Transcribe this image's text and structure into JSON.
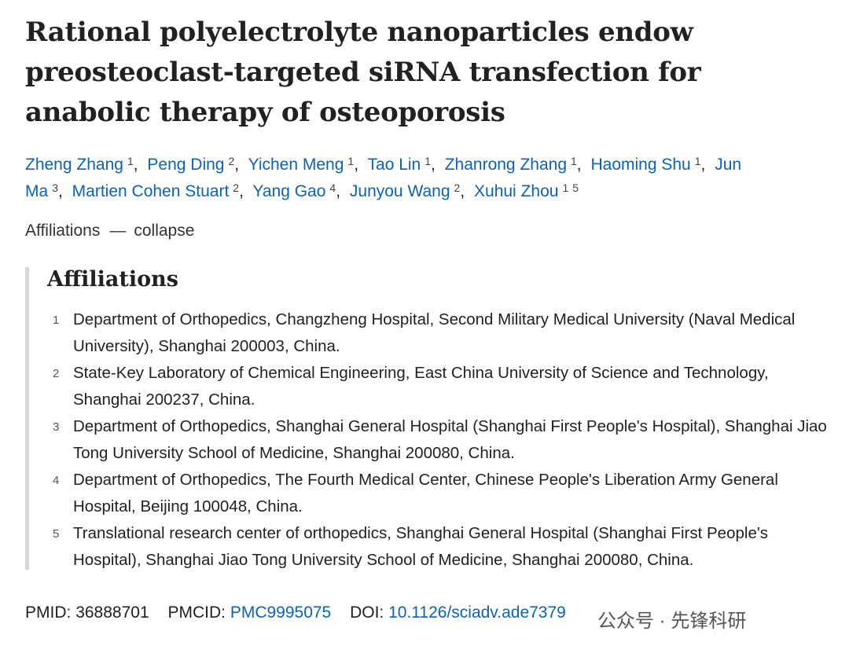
{
  "header": {
    "title": "Rational polyelectrolyte nanoparticles endow preosteoclast-targeted siRNA transfection for anabolic therapy of osteoporosis"
  },
  "authors": {
    "separator": ",",
    "list": [
      {
        "name": "Zheng Zhang",
        "affiliations": [
          "1"
        ]
      },
      {
        "name": "Peng Ding",
        "affiliations": [
          "2"
        ]
      },
      {
        "name": "Yichen Meng",
        "affiliations": [
          "1"
        ]
      },
      {
        "name": "Tao Lin",
        "affiliations": [
          "1"
        ]
      },
      {
        "name": "Zhanrong Zhang",
        "affiliations": [
          "1"
        ]
      },
      {
        "name": "Haoming Shu",
        "affiliations": [
          "1"
        ]
      },
      {
        "name": "Jun Ma",
        "affiliations": [
          "3"
        ]
      },
      {
        "name": "Martien Cohen Stuart",
        "affiliations": [
          "2"
        ]
      },
      {
        "name": "Yang Gao",
        "affiliations": [
          "4"
        ]
      },
      {
        "name": "Junyou Wang",
        "affiliations": [
          "2"
        ]
      },
      {
        "name": "Xuhui Zhou",
        "affiliations": [
          "1",
          "5"
        ]
      }
    ]
  },
  "toggle": {
    "label": "Affiliations",
    "icon": "—",
    "action": "collapse"
  },
  "affiliations": {
    "heading": "Affiliations",
    "items": [
      {
        "number": "1",
        "text": "Department of Orthopedics, Changzheng Hospital, Second Military Medical University (Naval Medical University), Shanghai 200003, China."
      },
      {
        "number": "2",
        "text": "State-Key Laboratory of Chemical Engineering, East China University of Science and Technology, Shanghai 200237, China."
      },
      {
        "number": "3",
        "text": "Department of Orthopedics, Shanghai General Hospital (Shanghai First People's Hospital), Shanghai Jiao Tong University School of Medicine, Shanghai 200080, China."
      },
      {
        "number": "4",
        "text": "Department of Orthopedics, The Fourth Medical Center, Chinese People's Liberation Army General Hospital, Beijing 100048, China."
      },
      {
        "number": "5",
        "text": "Translational research center of orthopedics, Shanghai General Hospital (Shanghai First People's Hospital), Shanghai Jiao Tong University School of Medicine, Shanghai 200080, China."
      }
    ]
  },
  "identifiers": {
    "pmid_label": "PMID:",
    "pmid": "36888701",
    "pmcid_label": "PMCID:",
    "pmcid": "PMC9995075",
    "doi_label": "DOI:",
    "doi": "10.1126/sciadv.ade7379"
  },
  "watermark": "公众号 · 先锋科研"
}
